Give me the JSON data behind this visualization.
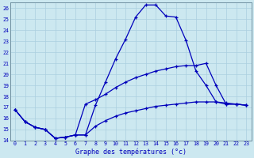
{
  "bg_color": "#cce8f0",
  "grid_color": "#aacfdf",
  "line_color": "#0000bb",
  "xlabel": "Graphe des températures (°c)",
  "xlim": [
    -0.5,
    23.5
  ],
  "ylim": [
    14,
    26.5
  ],
  "xticks": [
    0,
    1,
    2,
    3,
    4,
    5,
    6,
    7,
    8,
    9,
    10,
    11,
    12,
    13,
    14,
    15,
    16,
    17,
    18,
    19,
    20,
    21,
    22,
    23
  ],
  "yticks": [
    14,
    15,
    16,
    17,
    18,
    19,
    20,
    21,
    22,
    23,
    24,
    25,
    26
  ],
  "curve_high_x": [
    0,
    1,
    2,
    3,
    4,
    5,
    6,
    7,
    8,
    9,
    10,
    11,
    12,
    13,
    14,
    15,
    16,
    17,
    18,
    19,
    20,
    21,
    22,
    23
  ],
  "curve_high_y": [
    16.8,
    15.7,
    15.2,
    15.0,
    14.2,
    14.3,
    14.5,
    14.5,
    17.2,
    19.3,
    21.4,
    23.2,
    25.2,
    26.3,
    26.3,
    25.3,
    25.2,
    23.1,
    20.3,
    19.0,
    17.5,
    17.3,
    17.3,
    17.2
  ],
  "curve_mid_x": [
    0,
    1,
    2,
    3,
    4,
    5,
    6,
    7,
    8,
    9,
    10,
    11,
    12,
    13,
    14,
    15,
    16,
    17,
    18,
    19,
    20,
    21,
    22,
    23
  ],
  "curve_mid_y": [
    16.8,
    15.7,
    15.2,
    15.0,
    14.2,
    14.3,
    14.5,
    17.3,
    17.7,
    18.2,
    18.8,
    19.3,
    19.7,
    20.0,
    20.3,
    20.5,
    20.7,
    20.8,
    20.8,
    21.0,
    19.0,
    17.3,
    17.3,
    17.2
  ],
  "curve_low_x": [
    0,
    1,
    2,
    3,
    4,
    5,
    6,
    7,
    8,
    9,
    10,
    11,
    12,
    13,
    14,
    15,
    16,
    17,
    18,
    19,
    20,
    21,
    22,
    23
  ],
  "curve_low_y": [
    16.8,
    15.7,
    15.2,
    15.0,
    14.2,
    14.3,
    14.5,
    14.5,
    15.3,
    15.8,
    16.2,
    16.5,
    16.7,
    16.9,
    17.1,
    17.2,
    17.3,
    17.4,
    17.5,
    17.5,
    17.5,
    17.4,
    17.3,
    17.2
  ],
  "xlabel_fontsize": 6.0,
  "tick_fontsize": 4.8
}
